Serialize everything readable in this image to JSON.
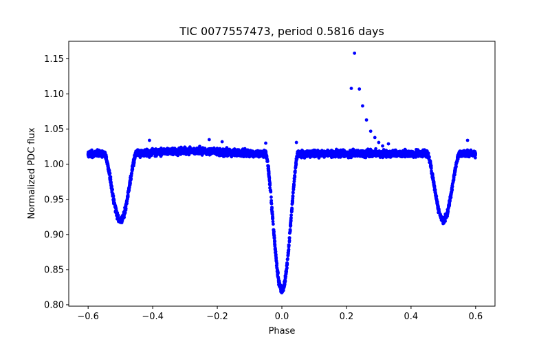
{
  "chart_data": {
    "type": "scatter",
    "title": "TIC 0077557473, period 0.5816 days",
    "xlabel": "Phase",
    "ylabel": "Normalized PDC flux",
    "xlim": [
      -0.66,
      0.66
    ],
    "ylim": [
      0.798,
      1.175
    ],
    "xticks": [
      -0.6,
      -0.4,
      -0.2,
      0.0,
      0.2,
      0.4,
      0.6
    ],
    "xtick_labels": [
      "−0.6",
      "−0.4",
      "−0.2",
      "0.0",
      "0.2",
      "0.4",
      "0.6"
    ],
    "yticks": [
      0.8,
      0.85,
      0.9,
      0.95,
      1.0,
      1.05,
      1.1,
      1.15
    ],
    "ytick_labels": [
      "0.80",
      "0.85",
      "0.90",
      "0.95",
      "1.00",
      "1.05",
      "1.10",
      "1.15"
    ],
    "grid": false,
    "legend": "none",
    "marker_color": "#0000ff",
    "x_range": [
      -0.6,
      0.6
    ],
    "baseline_flux": 1.015,
    "eclipses": [
      {
        "phase": -0.5,
        "min_flux": 0.92,
        "half_width": 0.05
      },
      {
        "phase": 0.0,
        "min_flux": 0.82,
        "half_width": 0.05
      },
      {
        "phase": 0.5,
        "min_flux": 0.92,
        "half_width": 0.05
      }
    ],
    "flare_points": [
      {
        "x": 0.215,
        "y": 1.108
      },
      {
        "x": 0.225,
        "y": 1.158
      },
      {
        "x": 0.24,
        "y": 1.107
      },
      {
        "x": 0.25,
        "y": 1.083
      },
      {
        "x": 0.262,
        "y": 1.063
      },
      {
        "x": 0.275,
        "y": 1.047
      },
      {
        "x": 0.288,
        "y": 1.038
      },
      {
        "x": 0.3,
        "y": 1.031
      },
      {
        "x": 0.312,
        "y": 1.026
      }
    ]
  }
}
